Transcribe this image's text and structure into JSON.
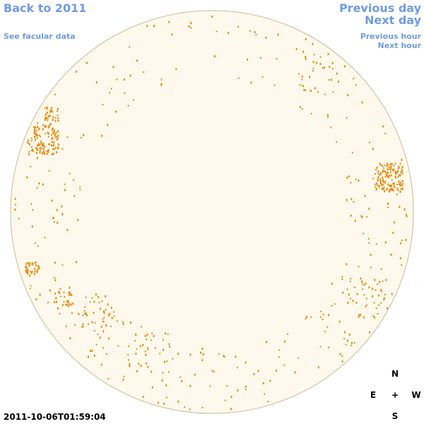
{
  "links": {
    "back": "Back to 2011",
    "previous_day": "Previous day",
    "next_day": "Next day",
    "see_data": "See facular data",
    "previous_hour": "Previous hour",
    "next_hour": "Next hour"
  },
  "timestamp": "2011-10-06T01:59:04",
  "compass": {
    "north": "N",
    "east": "E",
    "center": "+",
    "west": "W",
    "south": "S"
  }
}
